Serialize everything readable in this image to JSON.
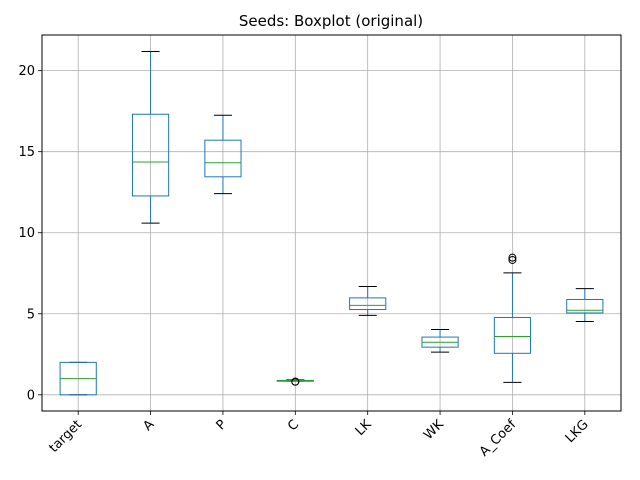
{
  "chart_data": {
    "type": "box",
    "title": "Seeds: Boxplot (original)",
    "xlabel": "",
    "ylabel": "",
    "ylim": [
      -1.0,
      22.2
    ],
    "yticks": [
      0,
      5,
      10,
      15,
      20
    ],
    "grid": true,
    "colors": {
      "box": "#1f77b4",
      "median": "#2ca02c",
      "whisker_cap": "#000000",
      "grid": "#b0b0b0",
      "flier": "#000000"
    },
    "categories": [
      "target",
      "A",
      "P",
      "C",
      "LK",
      "WK",
      "A_Coef",
      "LKG"
    ],
    "boxes": [
      {
        "name": "target",
        "whisker_low": 0.0,
        "q1": 0.0,
        "median": 1.0,
        "q3": 2.0,
        "whisker_high": 2.0,
        "fliers": []
      },
      {
        "name": "A",
        "whisker_low": 10.59,
        "q1": 12.27,
        "median": 14.36,
        "q3": 17.31,
        "whisker_high": 21.18,
        "fliers": []
      },
      {
        "name": "P",
        "whisker_low": 12.41,
        "q1": 13.45,
        "median": 14.32,
        "q3": 15.71,
        "whisker_high": 17.25,
        "fliers": []
      },
      {
        "name": "C",
        "whisker_low": 0.84,
        "q1": 0.857,
        "median": 0.873,
        "q3": 0.888,
        "whisker_high": 0.918,
        "fliers": [
          0.808,
          0.81
        ]
      },
      {
        "name": "LK",
        "whisker_low": 4.9,
        "q1": 5.26,
        "median": 5.52,
        "q3": 5.98,
        "whisker_high": 6.68,
        "fliers": []
      },
      {
        "name": "WK",
        "whisker_low": 2.63,
        "q1": 2.94,
        "median": 3.24,
        "q3": 3.56,
        "whisker_high": 4.03,
        "fliers": []
      },
      {
        "name": "A_Coef",
        "whisker_low": 0.77,
        "q1": 2.56,
        "median": 3.6,
        "q3": 4.77,
        "whisker_high": 7.52,
        "fliers": [
          8.32,
          8.46
        ]
      },
      {
        "name": "LKG",
        "whisker_low": 4.52,
        "q1": 5.05,
        "median": 5.22,
        "q3": 5.88,
        "whisker_high": 6.55,
        "fliers": []
      }
    ]
  }
}
